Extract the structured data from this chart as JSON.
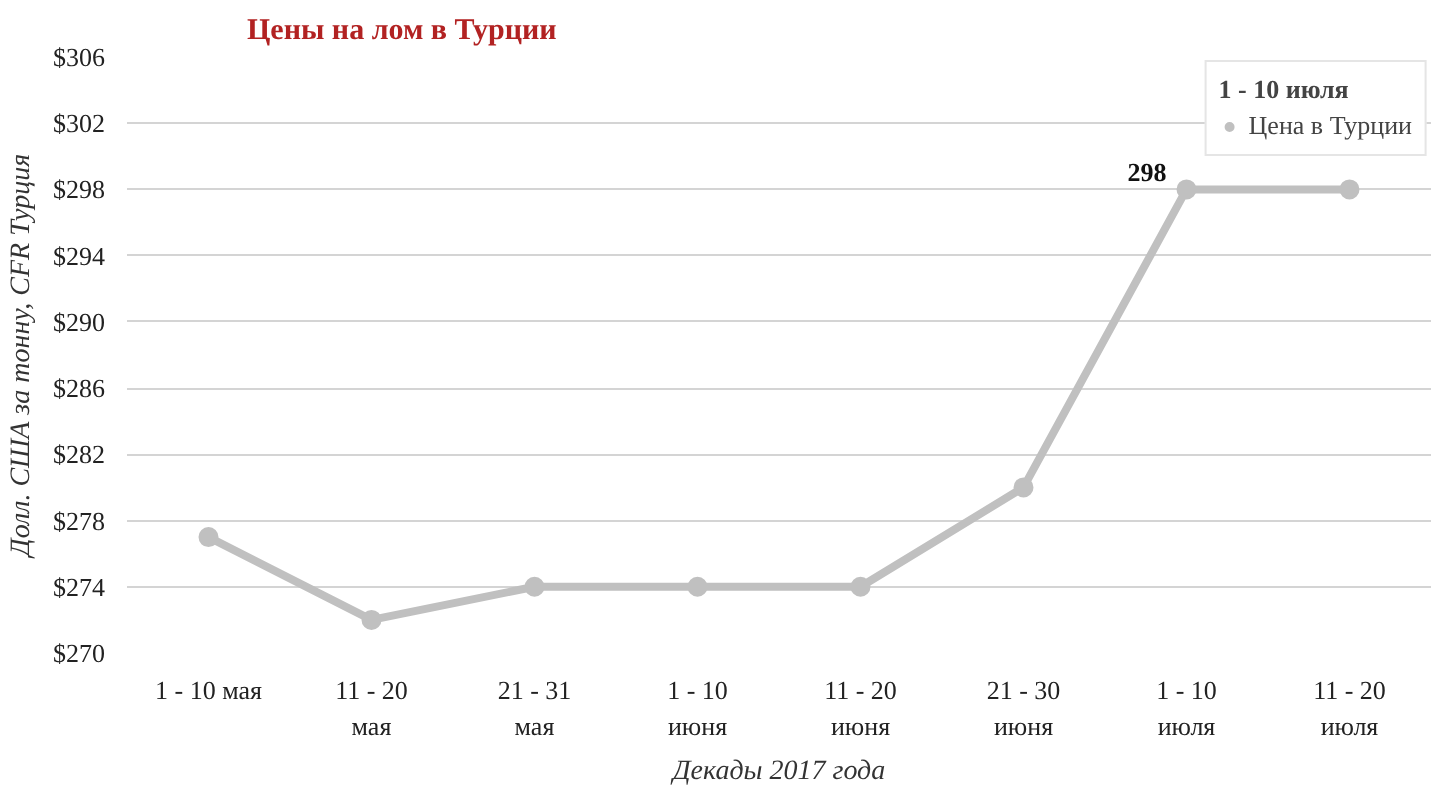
{
  "chart_data": {
    "type": "line",
    "title": "Цены на лом в Турции",
    "xlabel": "Декады 2017 года",
    "ylabel": "Долл. США за тонну, CFR Турция",
    "categories": [
      "1 - 10 мая",
      "11 - 20\nмая",
      "21 - 31\nмая",
      "1 - 10\nиюня",
      "11 - 20\nиюня",
      "21 - 30\nиюня",
      "1 - 10\nиюля",
      "11 - 20\nиюля"
    ],
    "series": [
      {
        "name": "Цена в Турции",
        "color": "#c0c0c0",
        "values": [
          277,
          272,
          274,
          274,
          274,
          280,
          298,
          298
        ]
      }
    ],
    "ylim": [
      270,
      306
    ],
    "yticks": [
      {
        "value": 270,
        "label": "$270"
      },
      {
        "value": 274,
        "label": "$274"
      },
      {
        "value": 278,
        "label": "$278"
      },
      {
        "value": 282,
        "label": "$282"
      },
      {
        "value": 286,
        "label": "$286"
      },
      {
        "value": 290,
        "label": "$290"
      },
      {
        "value": 294,
        "label": "$294"
      },
      {
        "value": 298,
        "label": "$298"
      },
      {
        "value": 302,
        "label": "$302"
      },
      {
        "value": 306,
        "label": "$306"
      }
    ],
    "grid": "y",
    "legend": "top right",
    "legend_title": "1 - 10 июля",
    "marker": "circle",
    "line_style": "solid",
    "value_labels": [
      null,
      null,
      null,
      null,
      null,
      null,
      "298",
      null
    ]
  }
}
